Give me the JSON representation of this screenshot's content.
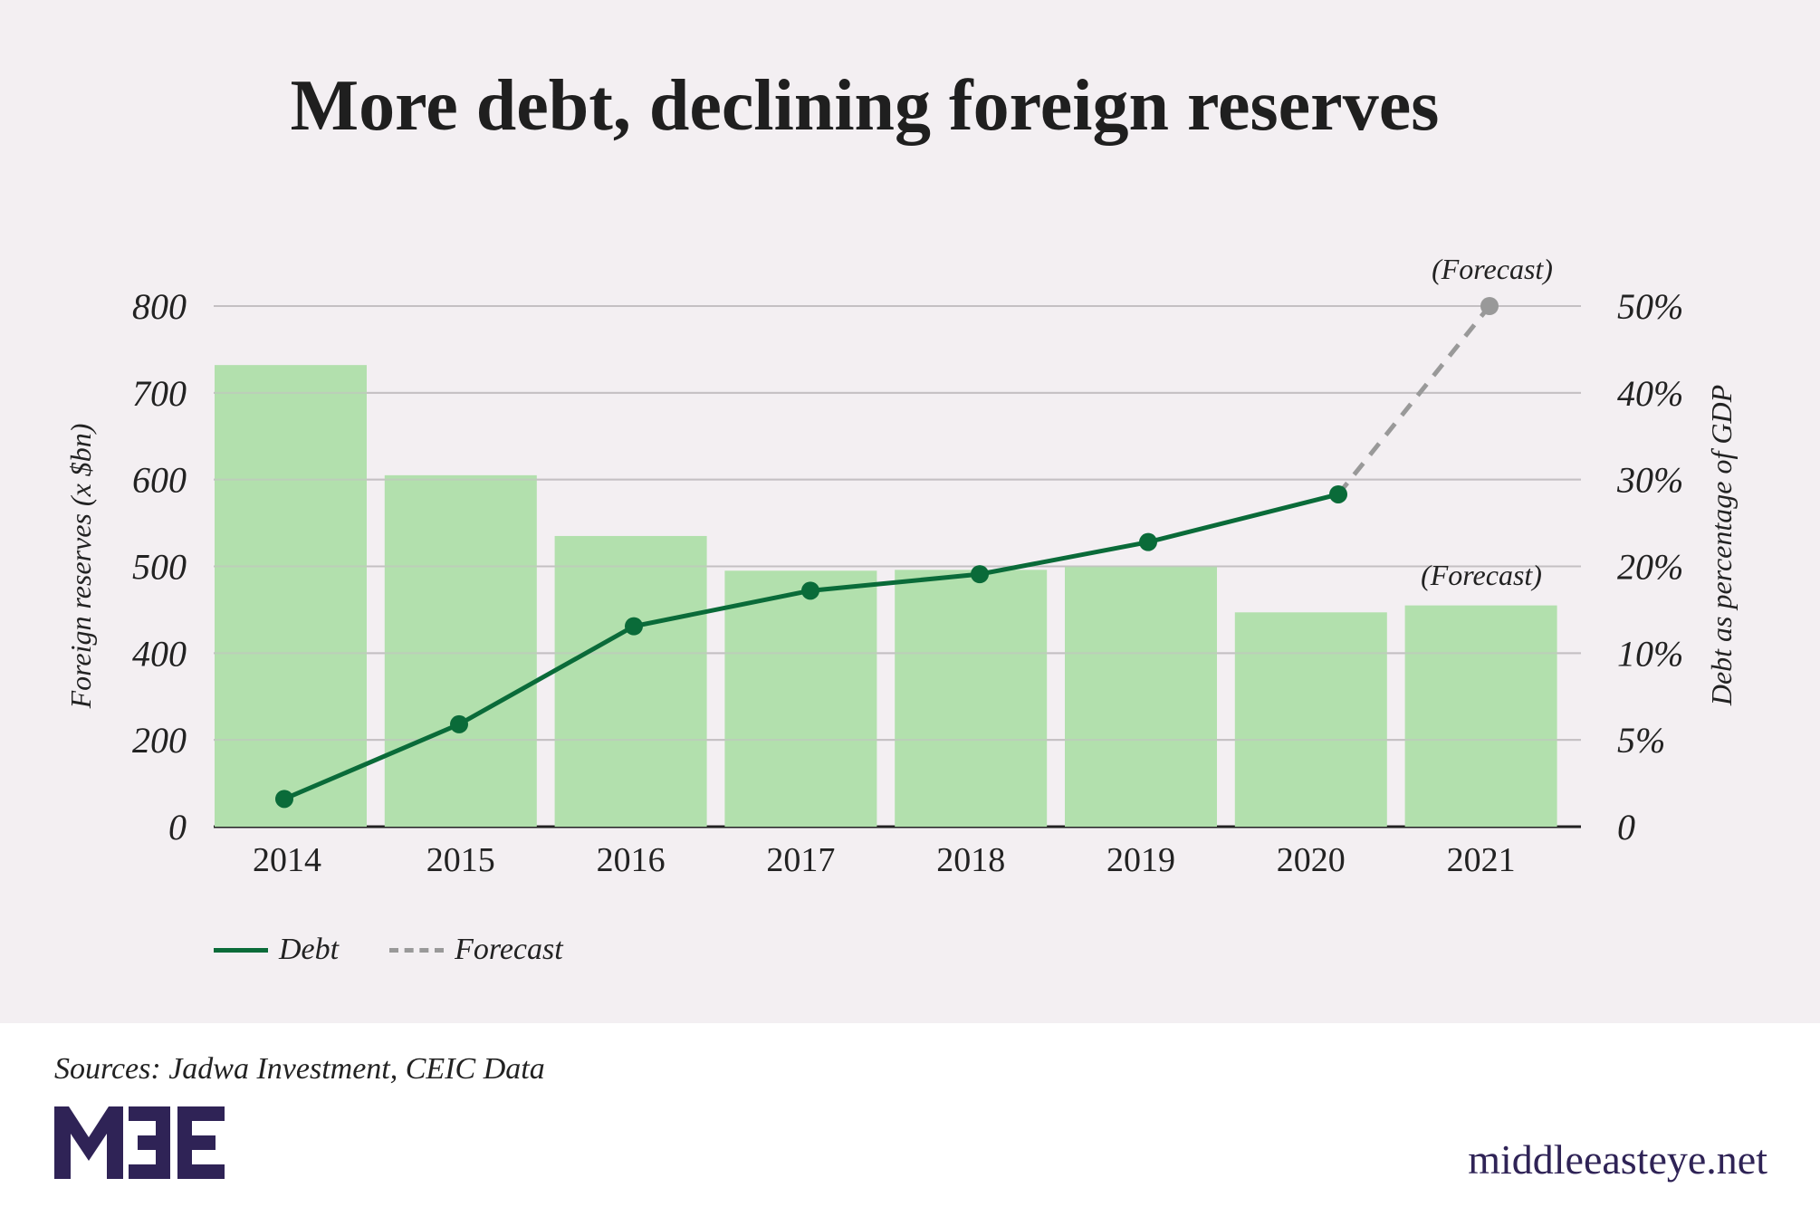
{
  "title": "More debt, declining foreign reserves",
  "sources": "Sources: Jadwa Investment, CEIC Data",
  "brand": {
    "logo": "MEE",
    "site": "middleeasteye.net",
    "color": "#2f2356"
  },
  "colors": {
    "bar": "#b2e0ad",
    "debt": "#0a6b39",
    "forecast": "#999999",
    "grid": "#c4c0c3",
    "background": "#f3eff2"
  },
  "legend": [
    {
      "label": "Debt",
      "style": "solid"
    },
    {
      "label": "Forecast",
      "style": "dashed"
    }
  ],
  "chart_data": {
    "type": "bar",
    "categories": [
      "2014",
      "2015",
      "2016",
      "2017",
      "2018",
      "2019",
      "2020",
      "2021"
    ],
    "left_axis": {
      "label": "Foreign reserves (x $bn)",
      "ticks": [
        "0",
        "200",
        "400",
        "500",
        "600",
        "700",
        "800"
      ]
    },
    "right_axis": {
      "label": "Debt as percentage of GDP",
      "ticks": [
        "0",
        "5%",
        "10%",
        "20%",
        "30%",
        "40%",
        "50%"
      ]
    },
    "grid": true,
    "bars": {
      "name": "Foreign reserves",
      "values": [
        732,
        605,
        535,
        495,
        496,
        500,
        447,
        455
      ]
    },
    "series": [
      {
        "name": "Debt",
        "x": [
          "2014",
          "2015",
          "2016",
          "2017",
          "2018",
          "2019",
          "2020"
        ],
        "values": [
          1.6,
          5.9,
          13.1,
          17.2,
          19.1,
          22.8,
          28.3
        ],
        "style": "solid"
      },
      {
        "name": "Forecast",
        "x": [
          "2020",
          "2021"
        ],
        "values": [
          28.3,
          50
        ],
        "style": "dashed"
      }
    ],
    "annotations": [
      {
        "text": "(Forecast)",
        "target": "debt-2021"
      },
      {
        "text": "(Forecast)",
        "target": "reserves-2021"
      }
    ]
  }
}
